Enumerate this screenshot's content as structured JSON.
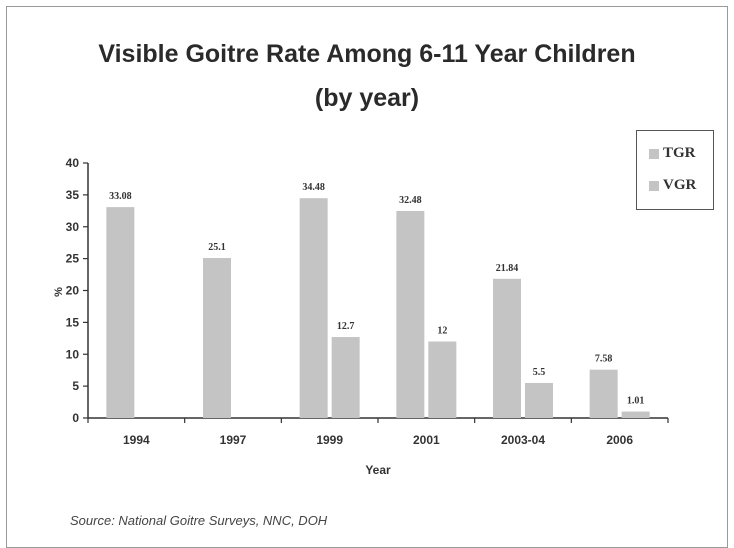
{
  "chart_data": {
    "type": "bar",
    "title": "Visible Goitre Rate Among 6-11 Year Children",
    "subtitle": "(by year)",
    "xlabel": "Year",
    "ylabel": "%",
    "categories": [
      "1994",
      "1997",
      "1999",
      "2001",
      "2003-04",
      "2006"
    ],
    "series": [
      {
        "name": "TGR",
        "color": "#c4c4c4",
        "values": [
          0,
          0,
          0,
          0,
          0,
          0
        ],
        "labels": [
          "",
          "",
          "",
          "",
          "",
          ""
        ]
      },
      {
        "name": "VGR",
        "color": "#c4c4c4",
        "values": [
          33.08,
          25.1,
          34.48,
          32.48,
          21.84,
          7.58
        ],
        "labels": [
          "33.08",
          "25.1",
          "34.48",
          "32.48",
          "21.84",
          "7.58"
        ]
      },
      {
        "name": "",
        "color": "#c4c4c4",
        "values": [
          0,
          0,
          12.7,
          12,
          5.5,
          1.01
        ],
        "labels": [
          "",
          "",
          "12.7",
          "12",
          "5.5",
          "1.01"
        ]
      }
    ],
    "yticks": [
      0,
      5,
      10,
      15,
      20,
      25,
      30,
      35,
      40
    ],
    "ylim": [
      0,
      40
    ],
    "legend_position": "top-right",
    "grid": false
  },
  "source": "Source: National Goitre Surveys, NNC, DOH"
}
